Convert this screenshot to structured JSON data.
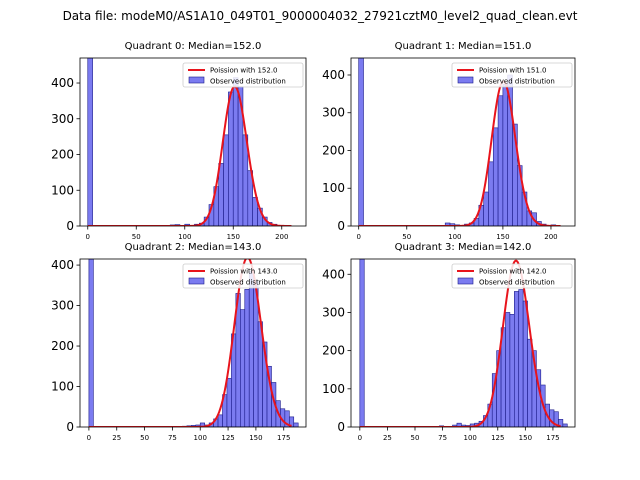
{
  "figure": {
    "suptitle": "Data file: modeM0/AS1A10_049T01_9000004032_27921cztM0_level2_quad_clean.evt"
  },
  "legend": {
    "fit_prefix": "Poission with ",
    "observed_label": "Observed distribution"
  },
  "colors": {
    "bar_fill": "#7b7bf0",
    "bar_edge": "#1c1c8a",
    "curve": "#e8141c"
  },
  "chart_data": [
    {
      "type": "bar",
      "title": "Quadrant 0: Median=152.0",
      "fit_label": "Poission with 152.0",
      "median": 152.0,
      "xlim": [
        -8,
        225
      ],
      "ylim": [
        0,
        470
      ],
      "xticks": [
        "0",
        "50",
        "100",
        "150",
        "200"
      ],
      "yticks": [
        "0",
        "100",
        "200",
        "300",
        "400"
      ],
      "bin_width": 5,
      "bars": [
        [
          0,
          470
        ],
        [
          85,
          3
        ],
        [
          90,
          4
        ],
        [
          95,
          2
        ],
        [
          100,
          5
        ],
        [
          110,
          5
        ],
        [
          115,
          8
        ],
        [
          120,
          25
        ],
        [
          125,
          60
        ],
        [
          130,
          110
        ],
        [
          135,
          175
        ],
        [
          140,
          255
        ],
        [
          145,
          375
        ],
        [
          150,
          415
        ],
        [
          155,
          390
        ],
        [
          160,
          255
        ],
        [
          165,
          155
        ],
        [
          170,
          80
        ],
        [
          175,
          50
        ],
        [
          180,
          25
        ],
        [
          185,
          10
        ],
        [
          190,
          5
        ],
        [
          200,
          2
        ]
      ],
      "curve_range": [
        0,
        210
      ]
    },
    {
      "type": "bar",
      "title": "Quadrant 1: Median=151.0",
      "fit_label": "Poission with 151.0",
      "median": 151.0,
      "xlim": [
        -8,
        225
      ],
      "ylim": [
        0,
        445
      ],
      "xticks": [
        "0",
        "50",
        "100",
        "150",
        "200"
      ],
      "yticks": [
        "0",
        "100",
        "200",
        "300",
        "400"
      ],
      "bin_width": 5,
      "bars": [
        [
          0,
          445
        ],
        [
          90,
          8
        ],
        [
          95,
          6
        ],
        [
          100,
          3
        ],
        [
          110,
          5
        ],
        [
          115,
          8
        ],
        [
          120,
          20
        ],
        [
          125,
          55
        ],
        [
          130,
          90
        ],
        [
          135,
          170
        ],
        [
          140,
          260
        ],
        [
          145,
          345
        ],
        [
          150,
          375
        ],
        [
          155,
          400
        ],
        [
          160,
          270
        ],
        [
          165,
          160
        ],
        [
          170,
          90
        ],
        [
          175,
          40
        ],
        [
          180,
          35
        ],
        [
          185,
          12
        ],
        [
          190,
          5
        ],
        [
          200,
          3
        ]
      ],
      "curve_range": [
        0,
        210
      ]
    },
    {
      "type": "bar",
      "title": "Quadrant 2: Median=143.0",
      "fit_label": "Poission with 143.0",
      "median": 143.0,
      "xlim": [
        -8,
        195
      ],
      "ylim": [
        0,
        415
      ],
      "xticks": [
        "0",
        "25",
        "50",
        "75",
        "100",
        "125",
        "150",
        "175"
      ],
      "yticks": [
        "0",
        "100",
        "200",
        "300",
        "400"
      ],
      "bin_width": 4,
      "bars": [
        [
          0,
          415
        ],
        [
          84,
          2
        ],
        [
          88,
          3
        ],
        [
          92,
          4
        ],
        [
          96,
          5
        ],
        [
          100,
          10
        ],
        [
          104,
          5
        ],
        [
          108,
          10
        ],
        [
          112,
          20
        ],
        [
          116,
          30
        ],
        [
          120,
          80
        ],
        [
          124,
          120
        ],
        [
          128,
          230
        ],
        [
          132,
          330
        ],
        [
          136,
          290
        ],
        [
          140,
          340
        ],
        [
          144,
          385
        ],
        [
          148,
          360
        ],
        [
          152,
          260
        ],
        [
          156,
          210
        ],
        [
          160,
          150
        ],
        [
          164,
          110
        ],
        [
          168,
          65
        ],
        [
          172,
          45
        ],
        [
          176,
          40
        ],
        [
          180,
          25
        ],
        [
          184,
          10
        ]
      ],
      "curve_range": [
        0,
        182
      ]
    },
    {
      "type": "bar",
      "title": "Quadrant 3: Median=142.0",
      "fit_label": "Poission with 142.0",
      "median": 142.0,
      "xlim": [
        -8,
        195
      ],
      "ylim": [
        0,
        440
      ],
      "xticks": [
        "0",
        "25",
        "50",
        "75",
        "100",
        "125",
        "150",
        "175"
      ],
      "yticks": [
        "0",
        "100",
        "200",
        "300",
        "400"
      ],
      "bin_width": 4,
      "bars": [
        [
          0,
          440
        ],
        [
          72,
          3
        ],
        [
          84,
          5
        ],
        [
          88,
          10
        ],
        [
          92,
          5
        ],
        [
          96,
          4
        ],
        [
          100,
          8
        ],
        [
          104,
          10
        ],
        [
          108,
          15
        ],
        [
          112,
          30
        ],
        [
          116,
          60
        ],
        [
          120,
          140
        ],
        [
          124,
          200
        ],
        [
          128,
          260
        ],
        [
          132,
          300
        ],
        [
          136,
          295
        ],
        [
          140,
          355
        ],
        [
          144,
          360
        ],
        [
          148,
          330
        ],
        [
          152,
          230
        ],
        [
          156,
          200
        ],
        [
          160,
          150
        ],
        [
          164,
          110
        ],
        [
          168,
          60
        ],
        [
          172,
          45
        ],
        [
          176,
          40
        ],
        [
          180,
          20
        ],
        [
          184,
          8
        ]
      ],
      "curve_range": [
        0,
        182
      ]
    }
  ]
}
